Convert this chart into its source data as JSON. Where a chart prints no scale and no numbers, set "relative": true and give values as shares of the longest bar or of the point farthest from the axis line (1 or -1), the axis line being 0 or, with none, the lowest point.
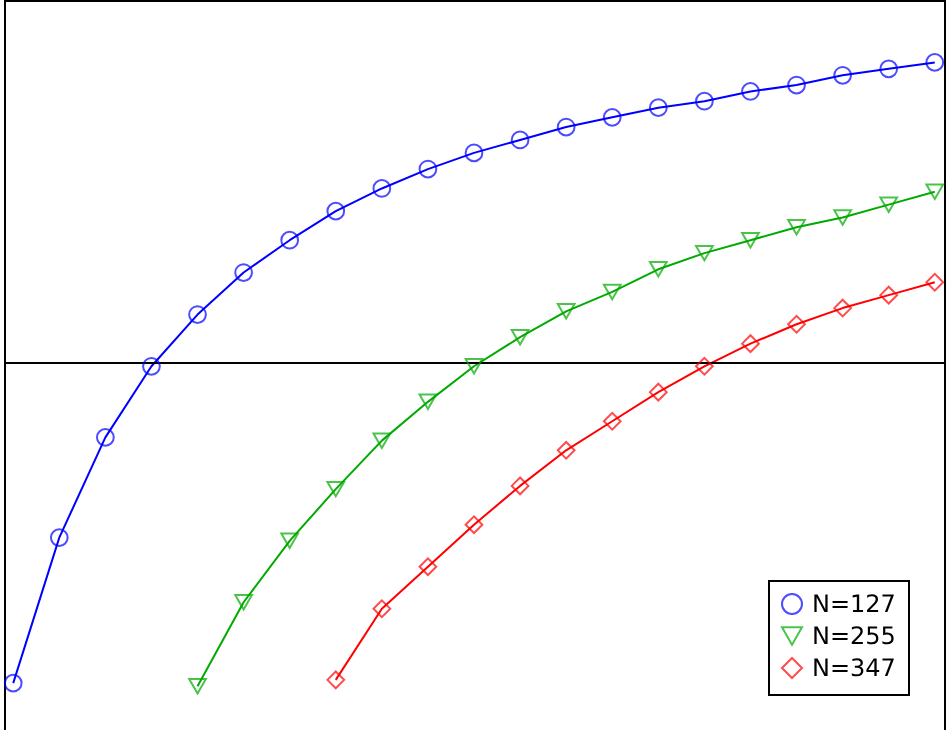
{
  "chart_data": {
    "type": "line",
    "relative": true,
    "legend": "bottom right",
    "categories": [
      null,
      null,
      null,
      null,
      null,
      null,
      null,
      null,
      null,
      null,
      null,
      null,
      null,
      null,
      null,
      null,
      null,
      null,
      null,
      null,
      null
    ],
    "series": [
      {
        "name": "N=127",
        "color": "#0000ff",
        "marker": "circle",
        "values": [
          -0.99,
          -0.54,
          -0.23,
          -0.01,
          0.15,
          0.28,
          0.38,
          0.47,
          0.54,
          0.6,
          0.65,
          0.69,
          0.73,
          0.76,
          0.79,
          0.81,
          0.84,
          0.86,
          0.89,
          0.91,
          0.93
        ]
      },
      {
        "name": "N=255",
        "color": "#00aa00",
        "marker": "triangle",
        "values": [
          null,
          null,
          null,
          null,
          -1.0,
          -0.74,
          -0.55,
          -0.39,
          -0.24,
          -0.12,
          -0.01,
          0.08,
          0.16,
          0.22,
          0.29,
          0.34,
          0.38,
          0.42,
          0.45,
          0.49,
          0.53
        ]
      },
      {
        "name": "N=347",
        "color": "#ff0000",
        "marker": "diamond",
        "values": [
          null,
          null,
          null,
          null,
          null,
          null,
          null,
          -0.98,
          -0.76,
          -0.63,
          -0.5,
          -0.38,
          -0.27,
          -0.18,
          -0.09,
          -0.01,
          0.06,
          0.12,
          0.17,
          0.21,
          0.25
        ]
      }
    ]
  }
}
